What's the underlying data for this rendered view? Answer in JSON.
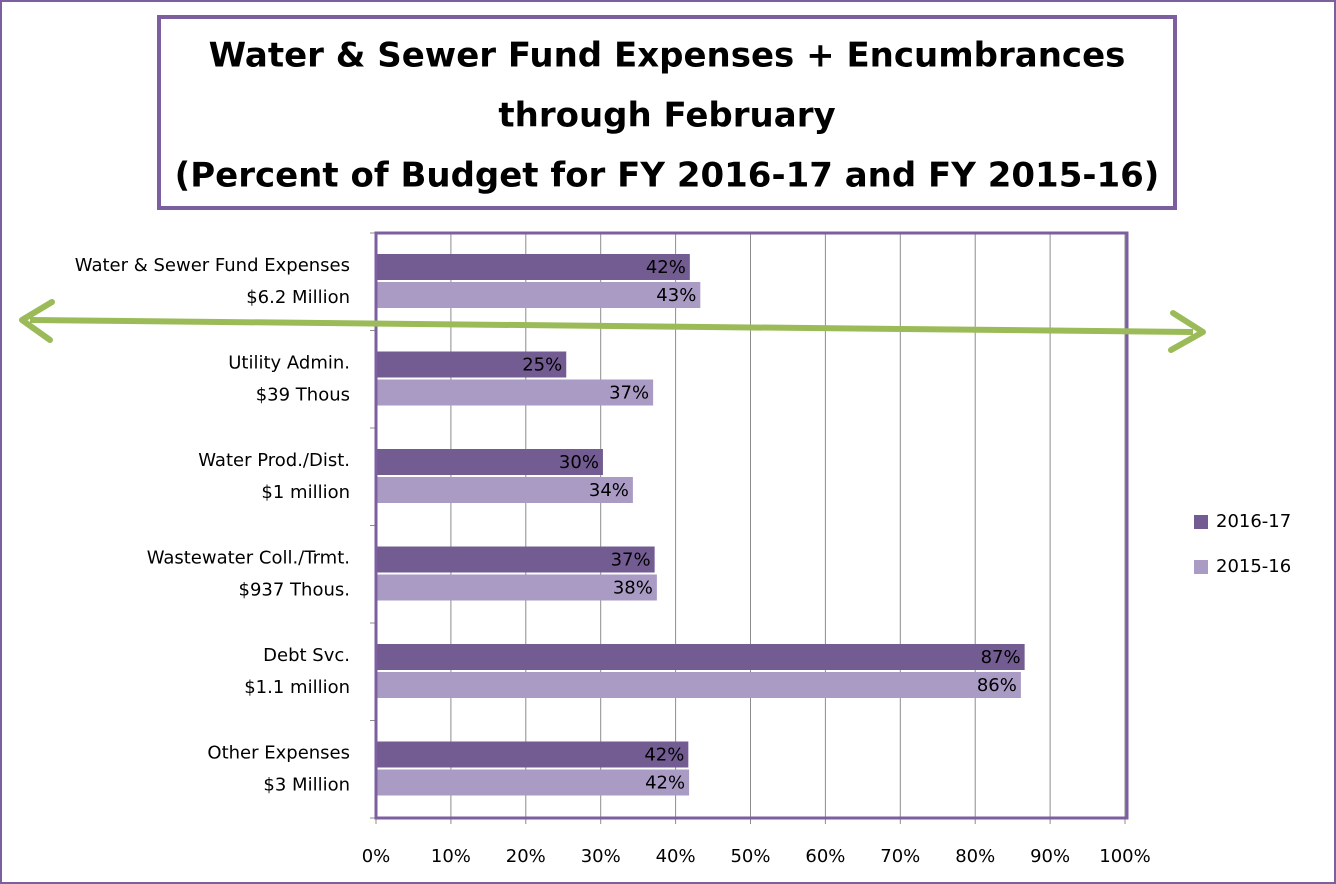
{
  "chart_data": {
    "type": "barh",
    "title": [
      "Water & Sewer Fund Expenses + Encumbrances",
      "through February",
      "(Percent of Budget for FY 2016-17 and FY 2015-16)"
    ],
    "categories": [
      [
        "Water & Sewer Fund Expenses",
        "$6.2 Million"
      ],
      [
        "Utility Admin.",
        "$39 Thous"
      ],
      [
        "Water Prod./Dist.",
        "$1 million"
      ],
      [
        "Wastewater Coll./Trmt.",
        "$937 Thous."
      ],
      [
        "Debt Svc.",
        "$1.1 million"
      ],
      [
        "Other Expenses",
        "$3 Million"
      ]
    ],
    "series": [
      {
        "name": "2016-17",
        "color": "#725c92",
        "values": [
          41.9,
          25.4,
          30.3,
          37.2,
          86.6,
          41.7
        ],
        "value_labels": [
          "42%",
          "25%",
          "30%",
          "37%",
          "87%",
          "42%"
        ]
      },
      {
        "name": "2015-16",
        "color": "#aa9bc5",
        "values": [
          43.3,
          37.0,
          34.3,
          37.5,
          86.1,
          41.8
        ],
        "value_labels": [
          "43%",
          "37%",
          "34%",
          "38%",
          "86%",
          "42%"
        ]
      }
    ],
    "xlim": [
      0,
      100
    ],
    "xticks": [
      {
        "value": 0,
        "label": "0%"
      },
      {
        "value": 10,
        "label": "10%"
      },
      {
        "value": 20,
        "label": "20%"
      },
      {
        "value": 30,
        "label": "30%"
      },
      {
        "value": 40,
        "label": "40%"
      },
      {
        "value": 50,
        "label": "50%"
      },
      {
        "value": 60,
        "label": "60%"
      },
      {
        "value": 70,
        "label": "70%"
      },
      {
        "value": 80,
        "label": "80%"
      },
      {
        "value": 90,
        "label": "90%"
      },
      {
        "value": 100,
        "label": "100%"
      }
    ],
    "grid": true,
    "legend": "right"
  }
}
